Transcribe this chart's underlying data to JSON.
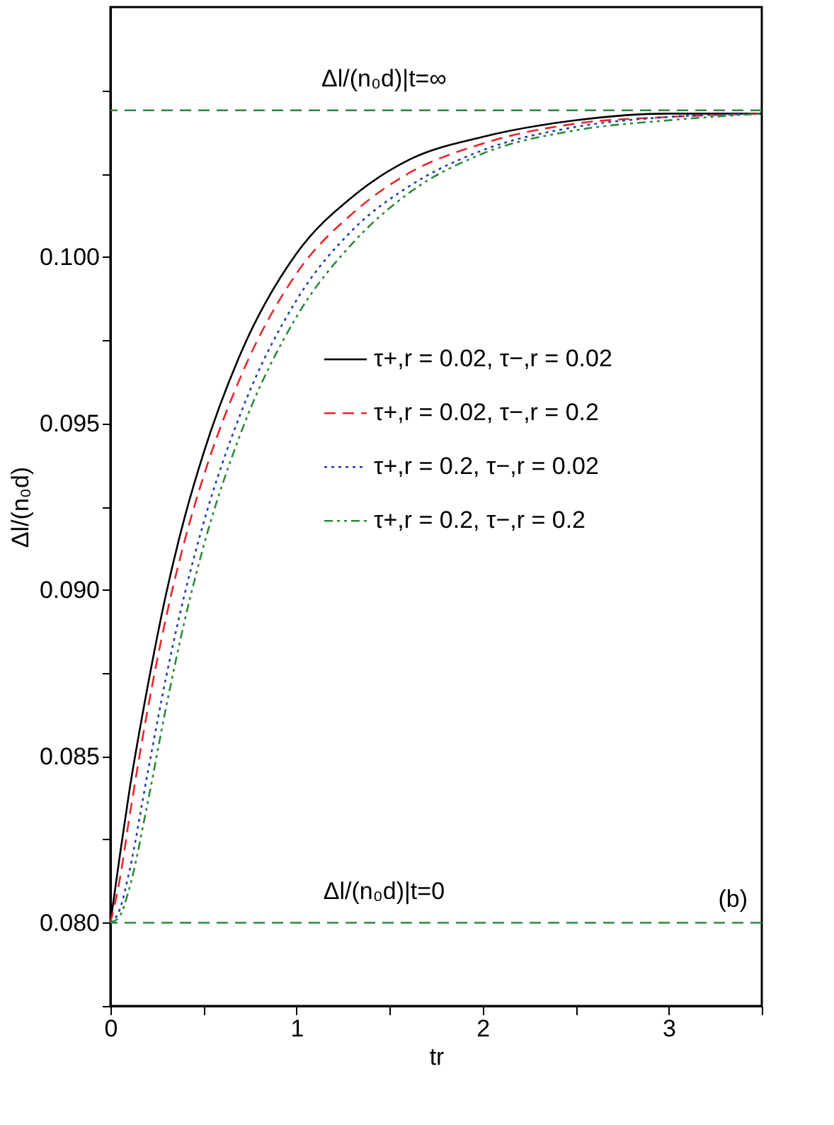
{
  "chart_data": {
    "type": "line",
    "xlabel": "tr",
    "ylabel": "Δl/(n₀d)",
    "x": [
      0,
      0.05,
      0.1,
      0.2,
      0.3,
      0.4,
      0.5,
      0.7,
      1.0,
      1.3,
      1.6,
      2.0,
      2.5,
      3.0,
      3.5
    ],
    "series": [
      {
        "name": "τ+,r = 0.02, τ−,r = 0.02",
        "color": "#000000",
        "line_style": "solid",
        "values": [
          0.08,
          0.082,
          0.0839,
          0.0871,
          0.0899,
          0.0922,
          0.0941,
          0.0971,
          0.1001,
          0.1018,
          0.1029,
          0.1036,
          0.1041,
          0.1043,
          0.1043
        ]
      },
      {
        "name": "τ+,r = 0.02, τ−,r = 0.2",
        "color": "#e8262b",
        "line_style": "dashed",
        "values": [
          0.08,
          0.0813,
          0.0831,
          0.0864,
          0.0892,
          0.0915,
          0.0934,
          0.0964,
          0.0995,
          0.1013,
          0.1025,
          0.1034,
          0.104,
          0.1042,
          0.1043
        ]
      },
      {
        "name": "τ+,r = 0.2, τ−,r = 0.02",
        "color": "#2040b0",
        "line_style": "dotted",
        "values": [
          0.08,
          0.0804,
          0.0815,
          0.0845,
          0.0874,
          0.0899,
          0.092,
          0.0953,
          0.0987,
          0.1008,
          0.1021,
          0.1032,
          0.1039,
          0.1042,
          0.1043
        ]
      },
      {
        "name": "τ+,r = 0.2, τ−,r = 0.2",
        "color": "#2a8a3a",
        "line_style": "dashdot",
        "values": [
          0.08,
          0.0802,
          0.081,
          0.0836,
          0.0865,
          0.0891,
          0.0913,
          0.0947,
          0.0982,
          0.1004,
          0.1019,
          0.1031,
          0.1038,
          0.1041,
          0.1043
        ]
      }
    ],
    "xlim": [
      0,
      3.5
    ],
    "xticks": [
      0,
      {
        "value": 0.5,
        "label": null
      },
      1,
      {
        "value": 1.5,
        "label": null
      },
      2,
      {
        "value": 2.5,
        "label": null
      },
      3,
      {
        "value": 3.5,
        "label": null
      }
    ],
    "ylim": [
      0.0775,
      0.1075
    ],
    "yticks": [
      {
        "value": 0.0775,
        "label": null
      },
      {
        "value": 0.08,
        "label": "0.080"
      },
      {
        "value": 0.0825,
        "label": null
      },
      {
        "value": 0.085,
        "label": "0.085"
      },
      {
        "value": 0.0875,
        "label": null
      },
      {
        "value": 0.09,
        "label": "0.090"
      },
      {
        "value": 0.0925,
        "label": null
      },
      {
        "value": 0.095,
        "label": "0.095"
      },
      {
        "value": 0.0975,
        "label": null
      },
      {
        "value": 0.1,
        "label": "0.100"
      },
      {
        "value": 0.1025,
        "label": null
      },
      {
        "value": 0.105,
        "label": null
      }
    ],
    "ref_lines": [
      {
        "axis": "y",
        "value": 0.1044,
        "label": "Δl/(n₀d)|t=∞",
        "color": "#2a8a3a",
        "line_style": "dashed"
      },
      {
        "axis": "y",
        "value": 0.08,
        "label": "Δl/(n₀d)|t=0",
        "color": "#2a8a3a",
        "line_style": "dashed"
      }
    ],
    "annotations": [
      "(b)"
    ],
    "legend": "right",
    "grid": false
  }
}
